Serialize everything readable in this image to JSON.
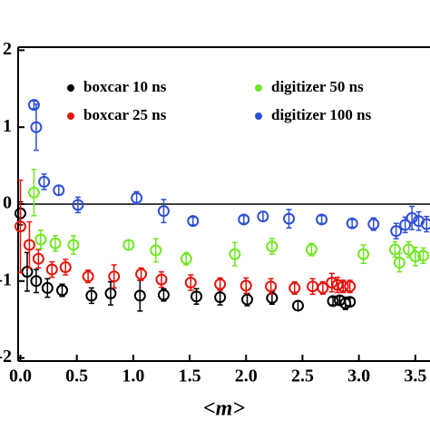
{
  "chart_data": {
    "type": "scatter",
    "xlabel": "<m>",
    "xlim": [
      -0.02,
      3.63
    ],
    "ylim": [
      -2.04,
      2.04
    ],
    "xticks": [
      {
        "value": 0,
        "label": "0.0"
      },
      {
        "value": 0.5,
        "label": "0.5"
      },
      {
        "value": 1,
        "label": "1.0"
      },
      {
        "value": 1.5,
        "label": "1.5"
      },
      {
        "value": 2,
        "label": "2.0"
      },
      {
        "value": 2.5,
        "label": "2.5"
      },
      {
        "value": 3,
        "label": "3.0"
      },
      {
        "value": 3.5,
        "label": "3.5"
      }
    ],
    "yticks": [
      2,
      1,
      0,
      -1,
      -2
    ],
    "legend": "top",
    "series": [
      {
        "name": "boxcar 10 ns",
        "color": "#000000",
        "x": [
          0.0,
          0.06,
          0.14,
          0.24,
          0.37,
          0.63,
          0.8,
          1.06,
          1.27,
          1.56,
          1.77,
          2.01,
          2.23,
          2.46,
          2.77,
          2.83,
          2.88,
          2.92
        ],
        "values": [
          -0.12,
          -0.88,
          -1.0,
          -1.09,
          -1.12,
          -1.19,
          -1.16,
          -1.19,
          -1.18,
          -1.2,
          -1.21,
          -1.24,
          -1.22,
          -1.32,
          -1.26,
          -1.25,
          -1.29,
          -1.27
        ],
        "errors": [
          0.15,
          0.25,
          0.15,
          0.12,
          0.08,
          0.1,
          0.15,
          0.2,
          0.08,
          0.1,
          0.1,
          0.08,
          0.08,
          0.06,
          0.05,
          0.05,
          0.08,
          0.05
        ]
      },
      {
        "name": "boxcar 25 ns",
        "color": "#e8120c",
        "x": [
          0.0,
          0.08,
          0.16,
          0.28,
          0.4,
          0.6,
          0.83,
          1.07,
          1.25,
          1.51,
          1.77,
          2.0,
          2.22,
          2.43,
          2.59,
          2.68,
          2.76,
          2.81,
          2.86,
          2.92
        ],
        "values": [
          -0.29,
          -0.53,
          -0.71,
          -0.85,
          -0.82,
          -0.94,
          -0.94,
          -0.91,
          -0.98,
          -1.02,
          -1.04,
          -1.06,
          -1.07,
          -1.09,
          -1.07,
          -1.09,
          -1.02,
          -1.05,
          -1.07,
          -1.07
        ],
        "errors": [
          0.6,
          0.3,
          0.12,
          0.1,
          0.1,
          0.08,
          0.15,
          0.08,
          0.1,
          0.1,
          0.08,
          0.1,
          0.1,
          0.08,
          0.1,
          0.08,
          0.12,
          0.1,
          0.08,
          0.08
        ]
      },
      {
        "name": "digitizer 50 ns",
        "color": "#6fe822",
        "x": [
          0.12,
          0.18,
          0.31,
          0.47,
          0.96,
          1.2,
          1.47,
          1.9,
          2.23,
          2.58,
          3.04,
          3.32,
          3.36,
          3.44,
          3.5,
          3.57
        ],
        "values": [
          0.15,
          -0.46,
          -0.51,
          -0.53,
          -0.53,
          -0.6,
          -0.71,
          -0.65,
          -0.55,
          -0.59,
          -0.65,
          -0.59,
          -0.76,
          -0.59,
          -0.68,
          -0.67
        ],
        "errors": [
          0.3,
          0.12,
          0.1,
          0.12,
          0.06,
          0.15,
          0.08,
          0.15,
          0.1,
          0.08,
          0.12,
          0.1,
          0.12,
          0.1,
          0.12,
          0.1
        ]
      },
      {
        "name": "digitizer 100 ns",
        "color": "#2e4fd6",
        "x": [
          0.12,
          0.14,
          0.21,
          0.34,
          0.51,
          1.03,
          1.27,
          1.53,
          1.98,
          2.15,
          2.38,
          2.67,
          2.94,
          3.13,
          3.33,
          3.41,
          3.47,
          3.53,
          3.6
        ],
        "values": [
          1.29,
          1.0,
          0.29,
          0.18,
          -0.01,
          0.08,
          -0.09,
          -0.22,
          -0.2,
          -0.16,
          -0.19,
          -0.2,
          -0.25,
          -0.26,
          -0.35,
          -0.27,
          -0.18,
          -0.22,
          -0.26
        ],
        "errors": [
          0.05,
          0.3,
          0.1,
          0.06,
          0.1,
          0.08,
          0.15,
          0.05,
          0.05,
          0.06,
          0.12,
          0.05,
          0.05,
          0.08,
          0.1,
          0.1,
          0.15,
          0.12,
          0.1
        ]
      }
    ]
  }
}
